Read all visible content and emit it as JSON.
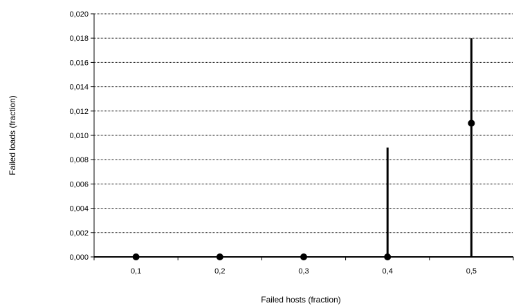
{
  "chart_data": {
    "type": "scatter",
    "xlabel": "Failed hosts (fraction)",
    "ylabel": "Failed loads (fraction)",
    "categories": [
      "0,1",
      "0,2",
      "0,3",
      "0,4",
      "0,5"
    ],
    "x": [
      0.1,
      0.2,
      0.3,
      0.4,
      0.5
    ],
    "values": [
      0.0,
      0.0,
      0.0,
      0.0,
      0.011
    ],
    "error_low": [
      0.0,
      0.0,
      0.0,
      0.0,
      0.0
    ],
    "error_high": [
      0.0,
      0.0,
      0.0,
      0.009,
      0.018
    ],
    "ylim": [
      0,
      0.02
    ],
    "yticks": [
      0.0,
      0.002,
      0.004,
      0.006,
      0.008,
      0.01,
      0.012,
      0.014,
      0.016,
      0.018,
      0.02
    ],
    "ytick_labels": [
      "0,000",
      "0,002",
      "0,004",
      "0,006",
      "0,008",
      "0,010",
      "0,012",
      "0,014",
      "0,016",
      "0,018",
      "0,020"
    ],
    "grid": true,
    "legend": "none",
    "colors": {
      "marker": "#000000",
      "grid": "#000000",
      "axis": "#000000"
    }
  }
}
